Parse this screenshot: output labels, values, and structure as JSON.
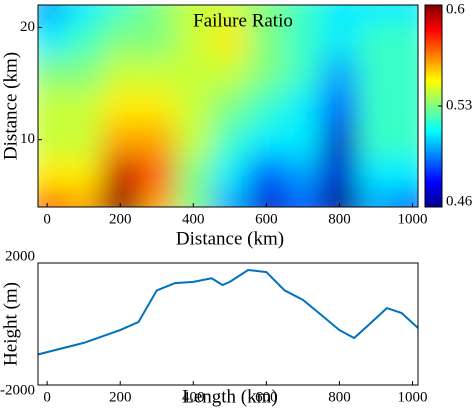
{
  "chart_data": [
    {
      "type": "heatmap",
      "title": "Failure Ratio",
      "xlabel": "Distance (km)",
      "ylabel": "Distance (km)",
      "x": [
        0,
        100,
        200,
        300,
        400,
        500,
        600,
        700,
        800,
        900,
        1000
      ],
      "y": [
        4,
        7,
        10,
        13,
        16,
        19,
        22
      ],
      "z": [
        [
          0.57,
          0.56,
          0.6,
          0.56,
          0.53,
          0.5,
          0.47,
          0.49,
          0.46,
          0.5,
          0.49
        ],
        [
          0.55,
          0.55,
          0.59,
          0.57,
          0.53,
          0.51,
          0.49,
          0.5,
          0.47,
          0.51,
          0.51
        ],
        [
          0.54,
          0.54,
          0.56,
          0.56,
          0.54,
          0.52,
          0.51,
          0.51,
          0.47,
          0.52,
          0.52
        ],
        [
          0.54,
          0.54,
          0.55,
          0.55,
          0.54,
          0.53,
          0.52,
          0.51,
          0.49,
          0.52,
          0.52
        ],
        [
          0.53,
          0.53,
          0.54,
          0.54,
          0.54,
          0.54,
          0.53,
          0.52,
          0.5,
          0.52,
          0.52
        ],
        [
          0.51,
          0.52,
          0.53,
          0.53,
          0.54,
          0.55,
          0.53,
          0.52,
          0.51,
          0.52,
          0.52
        ],
        [
          0.5,
          0.51,
          0.52,
          0.53,
          0.54,
          0.54,
          0.53,
          0.52,
          0.51,
          0.51,
          0.51
        ]
      ],
      "xlim": [
        -25,
        1015
      ],
      "ylim": [
        4,
        22
      ],
      "xticks": [
        0,
        200,
        400,
        600,
        800,
        1000
      ],
      "yticks": [
        10,
        20
      ],
      "zlim": [
        0.46,
        0.6
      ],
      "zticks": [
        0.46,
        0.53,
        0.6
      ]
    },
    {
      "type": "line",
      "xlabel": "Length (km)",
      "ylabel": "Height (m)",
      "color": "#0072bd",
      "x": [
        -25,
        0,
        100,
        200,
        250,
        300,
        350,
        400,
        450,
        480,
        500,
        550,
        600,
        650,
        700,
        750,
        800,
        840,
        880,
        930,
        970,
        1015
      ],
      "values": [
        -1000,
        -920,
        -620,
        -200,
        65,
        1100,
        1340,
        1380,
        1500,
        1280,
        1380,
        1770,
        1700,
        1100,
        790,
        300,
        -200,
        -460,
        -30,
        520,
        360,
        -130
      ],
      "xlim": [
        -25,
        1015
      ],
      "ylim": [
        -2000,
        2000
      ],
      "xticks": [
        0,
        200,
        400,
        600,
        800,
        1000
      ],
      "yticks": [
        -2000,
        2000
      ]
    }
  ]
}
